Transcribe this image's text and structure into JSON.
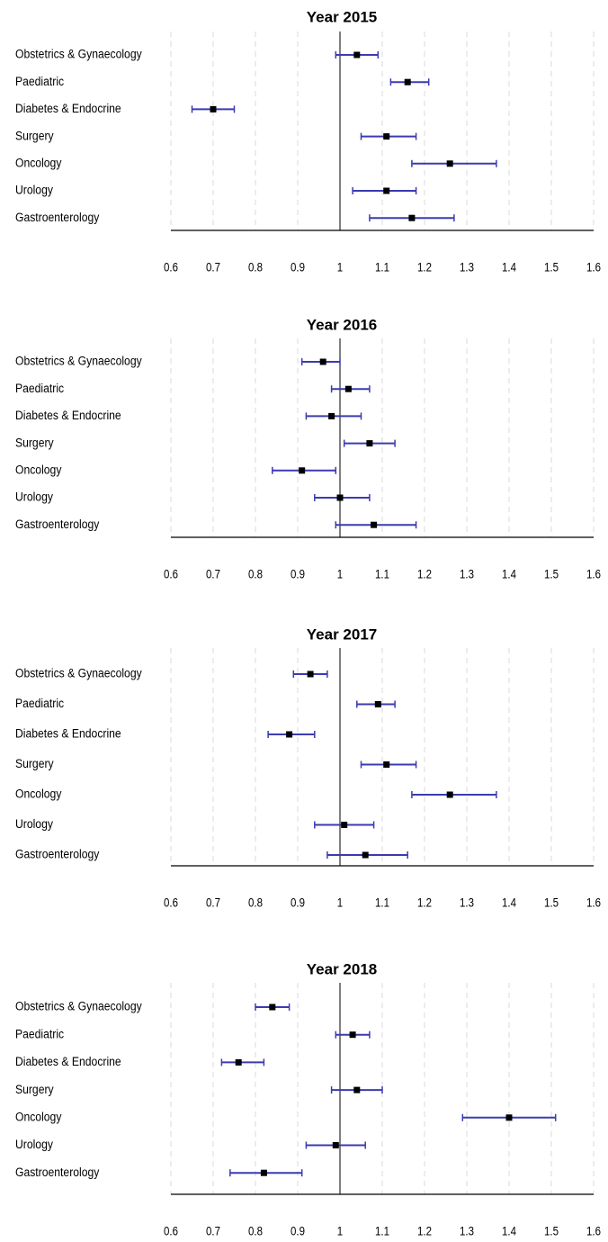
{
  "chart_data": {
    "type": "forest",
    "categories": [
      "Obstetrics & Gynaecology",
      "Paediatric",
      "Diabetes & Endocrine",
      "Surgery",
      "Oncology",
      "Urology",
      "Gastroenterology"
    ],
    "x_ticks": [
      "0.6",
      "0.7",
      "0.8",
      "0.9",
      "1",
      "1.1",
      "1.2",
      "1.3",
      "1.4",
      "1.5",
      "1.6"
    ],
    "xlim": [
      0.6,
      1.6
    ],
    "reference_line": 1,
    "grid": "vertical dashed",
    "colors": {
      "interval": "#3b3bb0",
      "point": "#000000",
      "grid": "#d9d9d9",
      "axis": "#000000"
    },
    "panels": [
      {
        "title": "Year 2015",
        "estimates": [
          1.04,
          1.16,
          0.7,
          1.11,
          1.26,
          1.11,
          1.17
        ],
        "lower": [
          0.99,
          1.12,
          0.65,
          1.05,
          1.17,
          1.03,
          1.07
        ],
        "upper": [
          1.09,
          1.21,
          0.75,
          1.18,
          1.37,
          1.18,
          1.27
        ]
      },
      {
        "title": "Year 2016",
        "estimates": [
          0.96,
          1.02,
          0.98,
          1.07,
          0.91,
          1.0,
          1.08
        ],
        "lower": [
          0.91,
          0.98,
          0.92,
          1.01,
          0.84,
          0.94,
          0.99
        ],
        "upper": [
          1.0,
          1.07,
          1.05,
          1.13,
          0.99,
          1.07,
          1.18
        ]
      },
      {
        "title": "Year 2017",
        "estimates": [
          0.93,
          1.09,
          0.88,
          1.11,
          1.26,
          1.01,
          1.06
        ],
        "lower": [
          0.89,
          1.04,
          0.83,
          1.05,
          1.17,
          0.94,
          0.97
        ],
        "upper": [
          0.97,
          1.13,
          0.94,
          1.18,
          1.37,
          1.08,
          1.16
        ]
      },
      {
        "title": "Year 2018",
        "estimates": [
          0.84,
          1.03,
          0.76,
          1.04,
          1.4,
          0.99,
          0.82
        ],
        "lower": [
          0.8,
          0.99,
          0.72,
          0.98,
          1.29,
          0.92,
          0.74
        ],
        "upper": [
          0.88,
          1.07,
          0.82,
          1.1,
          1.51,
          1.06,
          0.91
        ]
      }
    ]
  }
}
